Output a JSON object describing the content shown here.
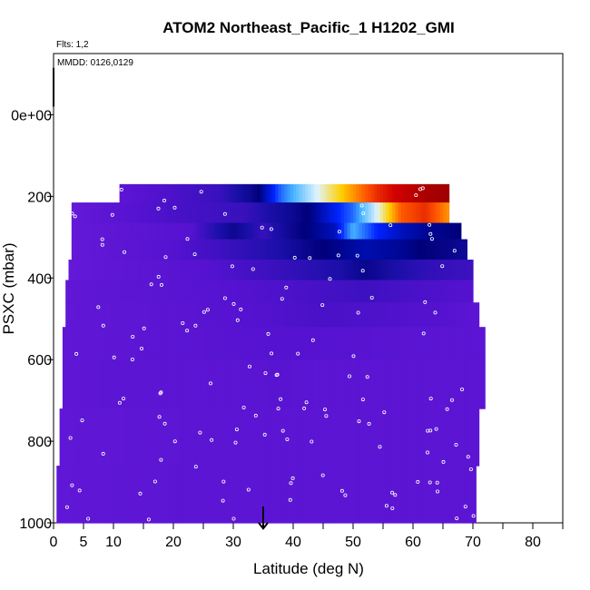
{
  "chart_data": {
    "type": "heatmap",
    "title": "ATOM2 Northeast_Pacific_1 H1202_GMI",
    "annotations": [
      "Flts: 1,2",
      "MMDD: 0126,0129"
    ],
    "xlabel": "Latitude (deg N)",
    "ylabel": "PSXC (mbar)",
    "xlim": [
      0,
      85
    ],
    "ylim": [
      1000,
      -150
    ],
    "y_reversed": true,
    "x_ticks": [
      0,
      5,
      10,
      20,
      30,
      40,
      50,
      60,
      70,
      80
    ],
    "x_minor_ticks": [
      15,
      25,
      35,
      45,
      55,
      65,
      75,
      85
    ],
    "y_ticks": [
      {
        "value": 0,
        "label": "0e+00"
      },
      {
        "value": 200,
        "label": "200"
      },
      {
        "value": 400,
        "label": "400"
      },
      {
        "value": 600,
        "label": "600"
      },
      {
        "value": 800,
        "label": "800"
      },
      {
        "value": 1000,
        "label": "1000"
      }
    ],
    "marker_latitude": 35,
    "colormap": [
      "#7b23e3",
      "#5512d0",
      "#1a0fa8",
      "#00007a",
      "#0022ff",
      "#46b4ff",
      "#e0f4ff",
      "#ffd000",
      "#ff5a00",
      "#d40000",
      "#a00000"
    ],
    "background_value": 0.08,
    "bands": [
      {
        "p": [
          170,
          215
        ],
        "cells": [
          [
            11,
            0.08
          ],
          [
            28,
            0.15
          ],
          [
            33,
            0.25
          ],
          [
            38,
            0.45
          ],
          [
            42,
            0.55
          ],
          [
            46,
            0.65
          ],
          [
            50,
            0.75
          ],
          [
            54,
            0.85
          ],
          [
            58,
            0.92
          ],
          [
            62,
            0.98
          ],
          [
            66,
            1.0
          ]
        ]
      },
      {
        "p": [
          215,
          265
        ],
        "cells": [
          [
            3,
            0.06
          ],
          [
            20,
            0.12
          ],
          [
            32,
            0.15
          ],
          [
            40,
            0.25
          ],
          [
            45,
            0.35
          ],
          [
            50,
            0.45
          ],
          [
            54,
            0.6
          ],
          [
            58,
            0.8
          ],
          [
            62,
            0.85
          ],
          [
            66,
            0.75
          ]
        ]
      },
      {
        "p": [
          265,
          305
        ],
        "cells": [
          [
            3,
            0.06
          ],
          [
            23,
            0.1
          ],
          [
            30,
            0.25
          ],
          [
            35,
            0.15
          ],
          [
            42,
            0.3
          ],
          [
            47,
            0.35
          ],
          [
            50,
            0.5
          ],
          [
            54,
            0.4
          ],
          [
            58,
            0.35
          ],
          [
            62,
            0.32
          ],
          [
            68,
            0.3
          ]
        ]
      },
      {
        "p": [
          305,
          355
        ],
        "cells": [
          [
            3,
            0.06
          ],
          [
            20,
            0.1
          ],
          [
            28,
            0.14
          ],
          [
            38,
            0.2
          ],
          [
            45,
            0.3
          ],
          [
            52,
            0.34
          ],
          [
            58,
            0.32
          ],
          [
            64,
            0.28
          ],
          [
            69,
            0.24
          ]
        ]
      },
      {
        "p": [
          355,
          405
        ],
        "cells": [
          [
            2.5,
            0.06
          ],
          [
            26,
            0.1
          ],
          [
            38,
            0.15
          ],
          [
            48,
            0.2
          ],
          [
            52,
            0.26
          ],
          [
            57,
            0.2
          ],
          [
            63,
            0.16
          ],
          [
            70,
            0.14
          ]
        ]
      },
      {
        "p": [
          405,
          460
        ],
        "cells": [
          [
            2,
            0.07
          ],
          [
            30,
            0.1
          ],
          [
            42,
            0.12
          ],
          [
            52,
            0.14
          ],
          [
            60,
            0.12
          ],
          [
            70,
            0.1
          ]
        ]
      },
      {
        "p": [
          460,
          520
        ],
        "cells": [
          [
            2,
            0.07
          ],
          [
            17,
            0.08
          ],
          [
            33,
            0.1
          ],
          [
            45,
            0.12
          ],
          [
            55,
            0.11
          ],
          [
            65,
            0.1
          ],
          [
            71,
            0.08
          ]
        ]
      },
      {
        "p": [
          520,
          600
        ],
        "cells": [
          [
            1.5,
            0.07
          ],
          [
            15,
            0.08
          ],
          [
            27,
            0.09
          ],
          [
            40,
            0.1
          ],
          [
            55,
            0.09
          ],
          [
            72,
            0.08
          ]
        ]
      },
      {
        "p": [
          600,
          720
        ],
        "cells": [
          [
            1.5,
            0.07
          ],
          [
            8,
            0.08
          ],
          [
            24,
            0.08
          ],
          [
            38,
            0.09
          ],
          [
            50,
            0.08
          ],
          [
            72,
            0.08
          ]
        ]
      },
      {
        "p": [
          720,
          860
        ],
        "cells": [
          [
            1,
            0.07
          ],
          [
            12,
            0.075
          ],
          [
            22,
            0.08
          ],
          [
            35,
            0.08
          ],
          [
            50,
            0.08
          ],
          [
            71,
            0.08
          ]
        ]
      },
      {
        "p": [
          860,
          1000
        ],
        "cells": [
          [
            0.5,
            0.07
          ],
          [
            10,
            0.075
          ],
          [
            20,
            0.08
          ],
          [
            40,
            0.08
          ],
          [
            55,
            0.08
          ],
          [
            70.5,
            0.08
          ]
        ]
      }
    ]
  }
}
